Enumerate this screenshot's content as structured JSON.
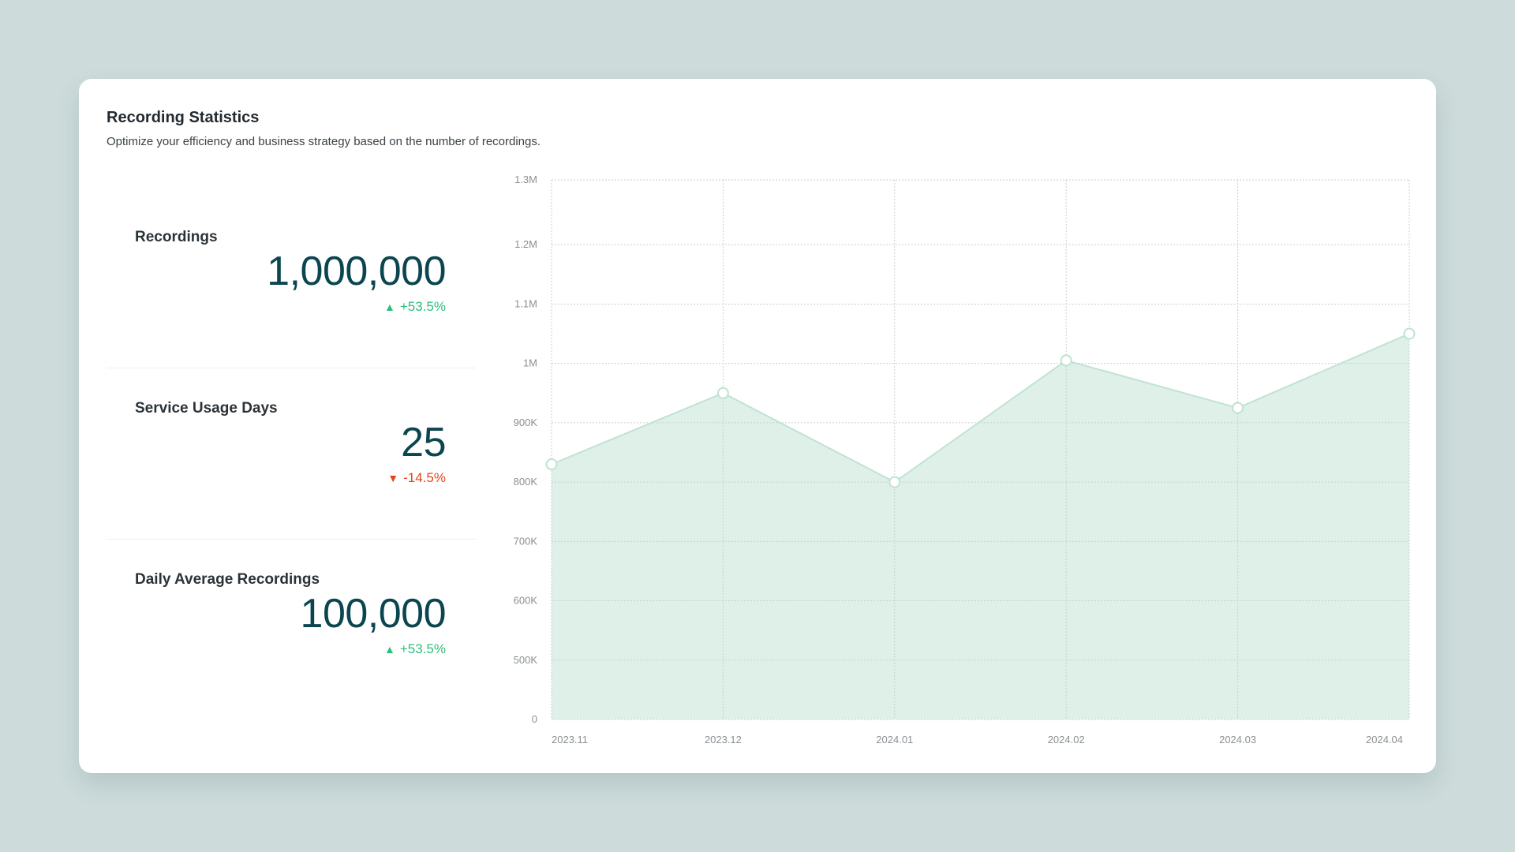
{
  "header": {
    "title": "Recording Statistics",
    "subtitle": "Optimize your efficiency and business strategy based on the number of recordings."
  },
  "stats": [
    {
      "label": "Recordings",
      "value": "1,000,000",
      "change": "+53.5%",
      "direction": "up"
    },
    {
      "label": "Service Usage Days",
      "value": "25",
      "change": "-14.5%",
      "direction": "down"
    },
    {
      "label": "Daily Average Recordings",
      "value": "100,000",
      "change": "+53.5%",
      "direction": "up"
    }
  ],
  "colors": {
    "accent_up": "#2cc07a",
    "accent_down": "#e5451b",
    "value_text": "#0b4650",
    "area_fill": "#dff0e8",
    "line": "#bfe3d2"
  },
  "icons": {
    "up": "triangle-up-icon",
    "down": "triangle-down-icon"
  },
  "chart_data": {
    "type": "area",
    "x": [
      "2023.11",
      "2023.12",
      "2024.01",
      "2024.02",
      "2024.03",
      "2024.04"
    ],
    "series": [
      {
        "values": [
          830000,
          950000,
          800000,
          1005000,
          925000,
          1050000
        ]
      }
    ],
    "yticks": [
      "0",
      "500K",
      "600K",
      "700K",
      "800K",
      "900K",
      "1M",
      "1.1M",
      "1.2M",
      "1.3M"
    ],
    "ytick_values": [
      0,
      500000,
      600000,
      700000,
      800000,
      900000,
      1000000,
      1100000,
      1200000,
      1300000
    ],
    "grid": true,
    "markers": true
  }
}
